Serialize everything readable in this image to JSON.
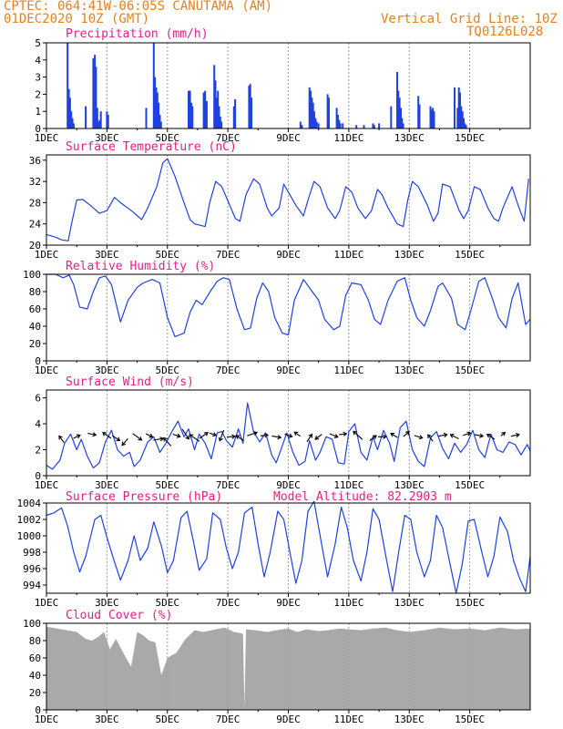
{
  "header": {
    "line1": "CPTEC:  064:41W-06:05S  CANUTAMA (AM)",
    "line2": "01DEC2020 10Z (GMT)",
    "grid_note": "Vertical Grid Line: 10Z",
    "code": "TQ0126L028"
  },
  "colors": {
    "header": "#e8801a",
    "title": "#e0208a",
    "series": "#2040e0",
    "cloud": "#a9a9a9"
  },
  "x_tick_labels": [
    "1DEC",
    "3DEC",
    "5DEC",
    "7DEC",
    "9DEC",
    "11DEC",
    "13DEC",
    "15DEC"
  ],
  "chart_data": [
    {
      "type": "bar",
      "title": "Precipitation (mm/h)",
      "ylim": [
        0,
        5
      ],
      "yticks": [
        "0",
        "1",
        "2",
        "3",
        "4",
        "5"
      ],
      "x_unit": "days since 1DEC 00Z",
      "x": [
        0.7,
        0.74,
        0.78,
        0.82,
        0.86,
        0.9,
        1.3,
        1.55,
        1.6,
        1.64,
        1.68,
        1.72,
        1.76,
        1.8,
        2.0,
        2.04,
        3.3,
        3.55,
        3.59,
        3.63,
        3.67,
        3.71,
        3.75,
        3.79,
        4.7,
        4.75,
        4.79,
        4.83,
        5.2,
        5.25,
        5.3,
        5.55,
        5.59,
        5.63,
        5.67,
        5.71,
        5.75,
        5.79,
        6.2,
        6.24,
        6.7,
        6.74,
        6.78,
        8.4,
        8.45,
        8.7,
        8.74,
        8.78,
        8.82,
        8.86,
        8.9,
        8.94,
        9.0,
        9.3,
        9.34,
        9.6,
        9.64,
        9.68,
        9.72,
        9.8,
        10.25,
        10.5,
        10.8,
        10.84,
        11.0,
        11.4,
        11.6,
        11.64,
        11.68,
        11.72,
        11.76,
        11.8,
        12.3,
        12.34,
        12.7,
        12.74,
        12.78,
        12.82,
        13.5,
        13.6,
        13.64,
        13.68,
        13.72,
        13.76,
        13.8,
        13.84,
        13.88
      ],
      "values": [
        5.0,
        2.3,
        1.8,
        1.0,
        0.6,
        0.3,
        1.3,
        4.1,
        4.3,
        3.6,
        1.2,
        0.4,
        0.5,
        1.0,
        1.0,
        0.8,
        1.2,
        5.0,
        3.0,
        2.4,
        2.1,
        1.5,
        0.8,
        0.4,
        2.2,
        2.2,
        1.5,
        1.3,
        2.1,
        2.2,
        1.6,
        3.7,
        2.8,
        1.8,
        2.2,
        1.3,
        0.7,
        0.4,
        1.3,
        1.7,
        2.5,
        2.6,
        1.8,
        0.4,
        0.2,
        2.4,
        2.2,
        1.8,
        1.5,
        1.0,
        0.6,
        0.4,
        0.3,
        2.0,
        1.8,
        1.2,
        0.8,
        0.5,
        0.3,
        0.3,
        0.2,
        0.2,
        0.3,
        0.2,
        0.3,
        1.3,
        3.3,
        2.2,
        1.8,
        1.2,
        0.6,
        0.3,
        1.9,
        1.4,
        1.3,
        1.1,
        1.2,
        1.0,
        2.4,
        1.2,
        2.4,
        2.1,
        1.3,
        1.0,
        0.6,
        0.3,
        0.2
      ]
    },
    {
      "type": "line",
      "title": "Surface Temperature (nC)",
      "ylim": [
        20,
        37
      ],
      "yticks": [
        "20",
        "24",
        "28",
        "32",
        "36"
      ],
      "x_unit": "days since 1DEC 00Z",
      "x": [
        0.0,
        0.3,
        0.5,
        0.72,
        0.83,
        1.0,
        1.2,
        1.45,
        1.75,
        2.0,
        2.25,
        2.45,
        2.85,
        3.15,
        3.35,
        3.65,
        3.85,
        4.0,
        4.25,
        4.55,
        4.75,
        4.9,
        5.25,
        5.4,
        5.6,
        5.8,
        5.95,
        6.25,
        6.4,
        6.6,
        6.85,
        7.05,
        7.3,
        7.45,
        7.7,
        7.85,
        8.0,
        8.25,
        8.5,
        8.65,
        8.85,
        9.05,
        9.3,
        9.55,
        9.7,
        9.9,
        10.1,
        10.3,
        10.55,
        10.75,
        10.95,
        11.1,
        11.3,
        11.6,
        11.8,
        11.95,
        12.1,
        12.3,
        12.6,
        12.8,
        12.95,
        13.1,
        13.35,
        13.65,
        13.8,
        13.95,
        14.15,
        14.35,
        14.6,
        14.8,
        14.95,
        15.1,
        15.4,
        15.6,
        15.8,
        15.95
      ],
      "values": [
        22.0,
        21.5,
        21.0,
        20.8,
        24.0,
        28.5,
        28.6,
        27.5,
        26.0,
        26.5,
        29.0,
        28.0,
        26.3,
        24.8,
        27.0,
        31.0,
        35.5,
        36.3,
        33.0,
        28.0,
        24.8,
        24.0,
        23.5,
        28.0,
        32.0,
        31.0,
        29.0,
        25.0,
        24.5,
        29.5,
        32.5,
        31.5,
        27.0,
        25.5,
        27.0,
        31.5,
        30.0,
        27.5,
        25.5,
        28.5,
        32.0,
        31.0,
        27.0,
        25.0,
        26.5,
        31.0,
        30.0,
        27.0,
        25.0,
        26.5,
        30.5,
        29.5,
        27.0,
        24.0,
        23.5,
        28.5,
        32.0,
        31.0,
        27.5,
        24.5,
        26.0,
        31.5,
        31.0,
        26.5,
        25.0,
        26.5,
        31.0,
        30.5,
        27.0,
        25.0,
        24.5,
        27.0,
        31.0,
        27.5,
        24.5,
        32.5
      ]
    },
    {
      "type": "line",
      "title": "Relative Humidity (%)",
      "ylim": [
        0,
        100
      ],
      "yticks": [
        "0",
        "20",
        "40",
        "60",
        "80",
        "100"
      ],
      "x_unit": "days since 1DEC 00Z",
      "x": [
        0.0,
        0.3,
        0.55,
        0.75,
        0.9,
        1.1,
        1.35,
        1.55,
        1.75,
        1.95,
        2.15,
        2.45,
        2.7,
        3.0,
        3.2,
        3.5,
        3.75,
        4.0,
        4.25,
        4.55,
        4.75,
        4.95,
        5.15,
        5.45,
        5.65,
        5.85,
        6.05,
        6.3,
        6.55,
        6.75,
        6.95,
        7.15,
        7.35,
        7.55,
        7.8,
        8.0,
        8.2,
        8.5,
        8.75,
        9.0,
        9.2,
        9.5,
        9.7,
        9.9,
        10.1,
        10.4,
        10.65,
        10.85,
        11.05,
        11.3,
        11.6,
        11.85,
        12.05,
        12.25,
        12.5,
        12.7,
        12.95,
        13.1,
        13.4,
        13.6,
        13.85,
        14.05,
        14.3,
        14.5,
        14.75,
        14.95,
        15.2,
        15.4,
        15.6,
        15.85,
        16.0
      ],
      "values": [
        100,
        100,
        96,
        99,
        88,
        62,
        60,
        80,
        96,
        98,
        88,
        45,
        70,
        85,
        90,
        94,
        90,
        50,
        28,
        32,
        56,
        70,
        65,
        82,
        92,
        96,
        94,
        60,
        36,
        38,
        72,
        90,
        80,
        50,
        32,
        30,
        70,
        94,
        82,
        70,
        48,
        36,
        40,
        76,
        90,
        88,
        70,
        48,
        42,
        70,
        92,
        96,
        70,
        50,
        40,
        58,
        86,
        90,
        72,
        42,
        36,
        60,
        92,
        96,
        72,
        50,
        38,
        72,
        90,
        42,
        48
      ]
    },
    {
      "type": "line",
      "title": "Surface Wind (m/s)",
      "ylim": [
        0,
        6.6
      ],
      "yticks": [
        "0",
        "2",
        "4",
        "6"
      ],
      "x_unit": "days since 1DEC 00Z",
      "x": [
        0.0,
        0.2,
        0.45,
        0.6,
        0.8,
        1.0,
        1.15,
        1.35,
        1.55,
        1.75,
        1.95,
        2.15,
        2.35,
        2.55,
        2.75,
        2.9,
        3.1,
        3.35,
        3.55,
        3.75,
        3.95,
        4.15,
        4.35,
        4.55,
        4.7,
        4.9,
        5.05,
        5.25,
        5.45,
        5.65,
        5.8,
        5.95,
        6.15,
        6.35,
        6.5,
        6.65,
        6.85,
        7.05,
        7.25,
        7.45,
        7.6,
        7.8,
        7.95,
        8.15,
        8.35,
        8.55,
        8.7,
        8.9,
        9.05,
        9.25,
        9.45,
        9.65,
        9.85,
        10.0,
        10.2,
        10.4,
        10.6,
        10.8,
        10.95,
        11.15,
        11.35,
        11.5,
        11.7,
        11.9,
        12.1,
        12.3,
        12.5,
        12.7,
        12.9,
        13.1,
        13.3,
        13.5,
        13.7,
        13.9,
        14.1,
        14.3,
        14.5,
        14.7,
        14.9,
        15.1,
        15.3,
        15.5,
        15.7,
        15.9,
        16.0
      ],
      "values": [
        0.8,
        0.5,
        1.2,
        2.5,
        3.2,
        2.0,
        2.8,
        1.5,
        0.6,
        1.0,
        2.6,
        3.5,
        2.0,
        1.5,
        1.8,
        0.7,
        1.2,
        2.6,
        3.0,
        1.8,
        2.5,
        3.4,
        4.2,
        3.0,
        3.6,
        2.0,
        3.2,
        2.5,
        1.3,
        3.3,
        3.4,
        2.7,
        2.2,
        3.6,
        2.5,
        5.6,
        3.4,
        2.6,
        3.3,
        1.6,
        1.0,
        2.3,
        3.3,
        1.8,
        0.8,
        1.1,
        2.7,
        1.2,
        1.8,
        3.0,
        2.8,
        1.0,
        0.9,
        3.4,
        4.0,
        1.8,
        1.2,
        3.0,
        2.0,
        3.5,
        2.5,
        1.1,
        3.7,
        4.2,
        2.0,
        1.1,
        0.7,
        2.9,
        3.4,
        2.1,
        1.3,
        2.5,
        1.8,
        2.4,
        3.5,
        2.0,
        1.4,
        3.2,
        2.0,
        1.8,
        2.6,
        2.4,
        1.6,
        2.4,
        1.9
      ]
    },
    {
      "type": "line",
      "title": "Surface Pressure (hPa)",
      "annotation": "Model Altitude: 82.2903 m",
      "ylim": [
        993,
        1004
      ],
      "yticks": [
        "994",
        "996",
        "998",
        "1000",
        "1002",
        "1004"
      ],
      "x_unit": "days since 1DEC 00Z",
      "x": [
        0.0,
        0.25,
        0.5,
        0.7,
        0.9,
        1.1,
        1.3,
        1.6,
        1.8,
        2.0,
        2.25,
        2.45,
        2.7,
        2.9,
        3.1,
        3.35,
        3.55,
        3.8,
        4.0,
        4.2,
        4.45,
        4.65,
        4.85,
        5.05,
        5.3,
        5.5,
        5.75,
        5.95,
        6.15,
        6.35,
        6.55,
        6.8,
        7.0,
        7.2,
        7.4,
        7.65,
        7.85,
        8.05,
        8.25,
        8.45,
        8.65,
        8.85,
        9.1,
        9.3,
        9.55,
        9.75,
        9.95,
        10.15,
        10.4,
        10.6,
        10.8,
        11.0,
        11.25,
        11.45,
        11.65,
        11.85,
        12.05,
        12.25,
        12.5,
        12.7,
        12.9,
        13.1,
        13.35,
        13.55,
        13.75,
        13.95,
        14.15,
        14.4,
        14.6,
        14.8,
        15.0,
        15.25,
        15.45,
        15.65,
        15.85,
        16.0
      ],
      "values": [
        1002.5,
        1002.8,
        1003.4,
        1001.2,
        998.0,
        995.6,
        997.5,
        1002.0,
        1002.5,
        999.8,
        996.8,
        994.6,
        997.0,
        1000.0,
        997.0,
        998.5,
        1001.7,
        998.8,
        995.5,
        997.0,
        1002.2,
        1003.0,
        999.5,
        995.8,
        997.2,
        1002.8,
        1002.0,
        998.5,
        996.0,
        998.0,
        1002.8,
        1003.5,
        999.0,
        995.0,
        998.0,
        1003.0,
        1002.0,
        998.0,
        994.2,
        997.0,
        1003.0,
        1004.2,
        999.0,
        995.0,
        999.0,
        1003.5,
        1001.0,
        997.0,
        994.5,
        998.0,
        1003.3,
        1002.0,
        997.0,
        993.2,
        998.0,
        1002.5,
        1002.0,
        998.0,
        995.0,
        997.0,
        1002.5,
        1001.0,
        996.5,
        993.0,
        996.5,
        1001.8,
        1002.0,
        998.0,
        995.0,
        997.5,
        1002.3,
        1000.5,
        997.0,
        994.8,
        993.2,
        997.5
      ]
    },
    {
      "type": "area",
      "title": "Cloud Cover (%)",
      "ylim": [
        0,
        100
      ],
      "yticks": [
        "0",
        "20",
        "40",
        "60",
        "80",
        "100"
      ],
      "x_unit": "days since 1DEC 00Z",
      "x": [
        0,
        0.5,
        1.0,
        1.3,
        1.5,
        1.7,
        1.9,
        2.1,
        2.3,
        2.6,
        2.8,
        3.0,
        3.2,
        3.4,
        3.6,
        3.8,
        4.0,
        4.3,
        4.6,
        4.9,
        5.2,
        5.6,
        5.9,
        6.2,
        6.5,
        6.55,
        6.6,
        6.9,
        7.3,
        7.6,
        8.0,
        8.3,
        8.6,
        9.0,
        9.3,
        9.7,
        10.0,
        10.4,
        10.8,
        11.2,
        11.6,
        12.0,
        12.5,
        13.0,
        13.5,
        14.0,
        14.5,
        15.0,
        15.5,
        16.0
      ],
      "values": [
        96,
        93,
        90,
        82,
        80,
        84,
        90,
        70,
        82,
        62,
        50,
        90,
        86,
        80,
        78,
        40,
        60,
        66,
        82,
        92,
        90,
        93,
        95,
        90,
        88,
        2,
        93,
        92,
        90,
        92,
        94,
        90,
        93,
        91,
        92,
        94,
        93,
        92,
        94,
        95,
        92,
        90,
        92,
        95,
        93,
        94,
        92,
        95,
        93,
        94
      ]
    }
  ],
  "wind_arrows": {
    "x": [
      0.5,
      1.0,
      1.5,
      2.0,
      2.3,
      2.6,
      3.0,
      3.4,
      3.7,
      4.0,
      4.3,
      4.6,
      4.9,
      5.2,
      5.5,
      5.8,
      6.1,
      6.4,
      6.8,
      7.2,
      7.6,
      8.0,
      8.3,
      8.7,
      9.0,
      9.5,
      9.8,
      10.3,
      10.8,
      11.1,
      11.5,
      11.9,
      12.3,
      12.7,
      13.1,
      13.5,
      13.9,
      14.3,
      14.7,
      15.1,
      15.5
    ],
    "y": [
      2.8,
      3.0,
      3.2,
      3.1,
      2.9,
      2.6,
      3.0,
      3.1,
      2.8,
      2.6,
      3.1,
      3.2,
      2.9,
      3.1,
      3.2,
      3.1,
      3.0,
      2.9,
      3.2,
      3.1,
      3.0,
      3.1,
      3.2,
      2.9,
      3.0,
      3.1,
      3.2,
      3.1,
      2.9,
      3.0,
      3.1,
      3.2,
      3.0,
      2.9,
      3.1,
      3.0,
      3.2,
      3.1,
      3.0,
      3.2,
      3.1
    ],
    "u": [
      -0.6,
      0.8,
      1.0,
      -1.0,
      0.9,
      -0.7,
      1.1,
      0.8,
      1.2,
      -0.9,
      0.9,
      0.8,
      -1.2,
      1.0,
      0.8,
      -0.5,
      1.0,
      -0.9,
      1.2,
      0.9,
      1.1,
      0.9,
      -0.7,
      0.6,
      -0.8,
      1.0,
      0.9,
      -1.1,
      0.8,
      1.0,
      -0.8,
      0.7,
      1.0,
      -0.6,
      1.1,
      -1.0,
      0.9,
      1.0,
      -0.9,
      0.5,
      1.0
    ],
    "v": [
      0.8,
      0.4,
      -0.2,
      0.7,
      -0.6,
      -0.8,
      -0.8,
      -0.4,
      0.2,
      1.0,
      -0.3,
      -1.2,
      0.8,
      0.7,
      -0.3,
      -1.3,
      0.1,
      0.6,
      0.4,
      0.1,
      -0.2,
      -0.3,
      0.5,
      0.9,
      -0.6,
      -0.4,
      0.1,
      1.0,
      0.6,
      0.0,
      0.5,
      0.6,
      -0.3,
      0.8,
      0.2,
      0.5,
      0.3,
      -0.2,
      0.6,
      0.4,
      0.2
    ]
  }
}
